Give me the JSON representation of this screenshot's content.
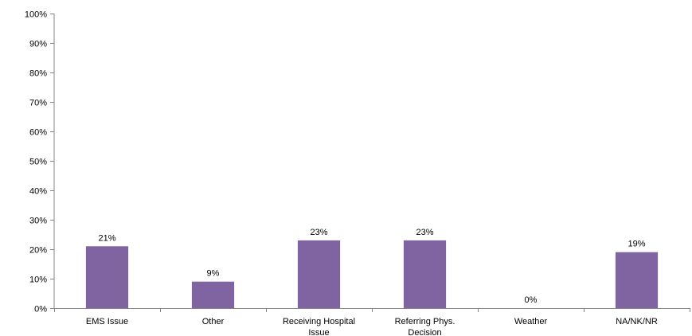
{
  "chart_data": {
    "type": "bar",
    "title": "",
    "xlabel": "",
    "ylabel": "",
    "categories": [
      [
        "EMS Issue"
      ],
      [
        "Other"
      ],
      [
        "Receiving Hospital",
        "Issue"
      ],
      [
        "Referring Phys.",
        "Decision"
      ],
      [
        "Weather"
      ],
      [
        "NA/NK/NR"
      ]
    ],
    "values": [
      21,
      9,
      23,
      23,
      0,
      19
    ],
    "data_labels": [
      "21%",
      "9%",
      "23%",
      "23%",
      "0%",
      "19%"
    ],
    "ylim": [
      0,
      100
    ],
    "yticks": [
      0,
      10,
      20,
      30,
      40,
      50,
      60,
      70,
      80,
      90,
      100
    ],
    "ytick_labels": [
      "0%",
      "10%",
      "20%",
      "30%",
      "40%",
      "50%",
      "60%",
      "70%",
      "80%",
      "90%",
      "100%"
    ],
    "grid": false,
    "legend": "none",
    "bar_color": "#8064A2"
  }
}
